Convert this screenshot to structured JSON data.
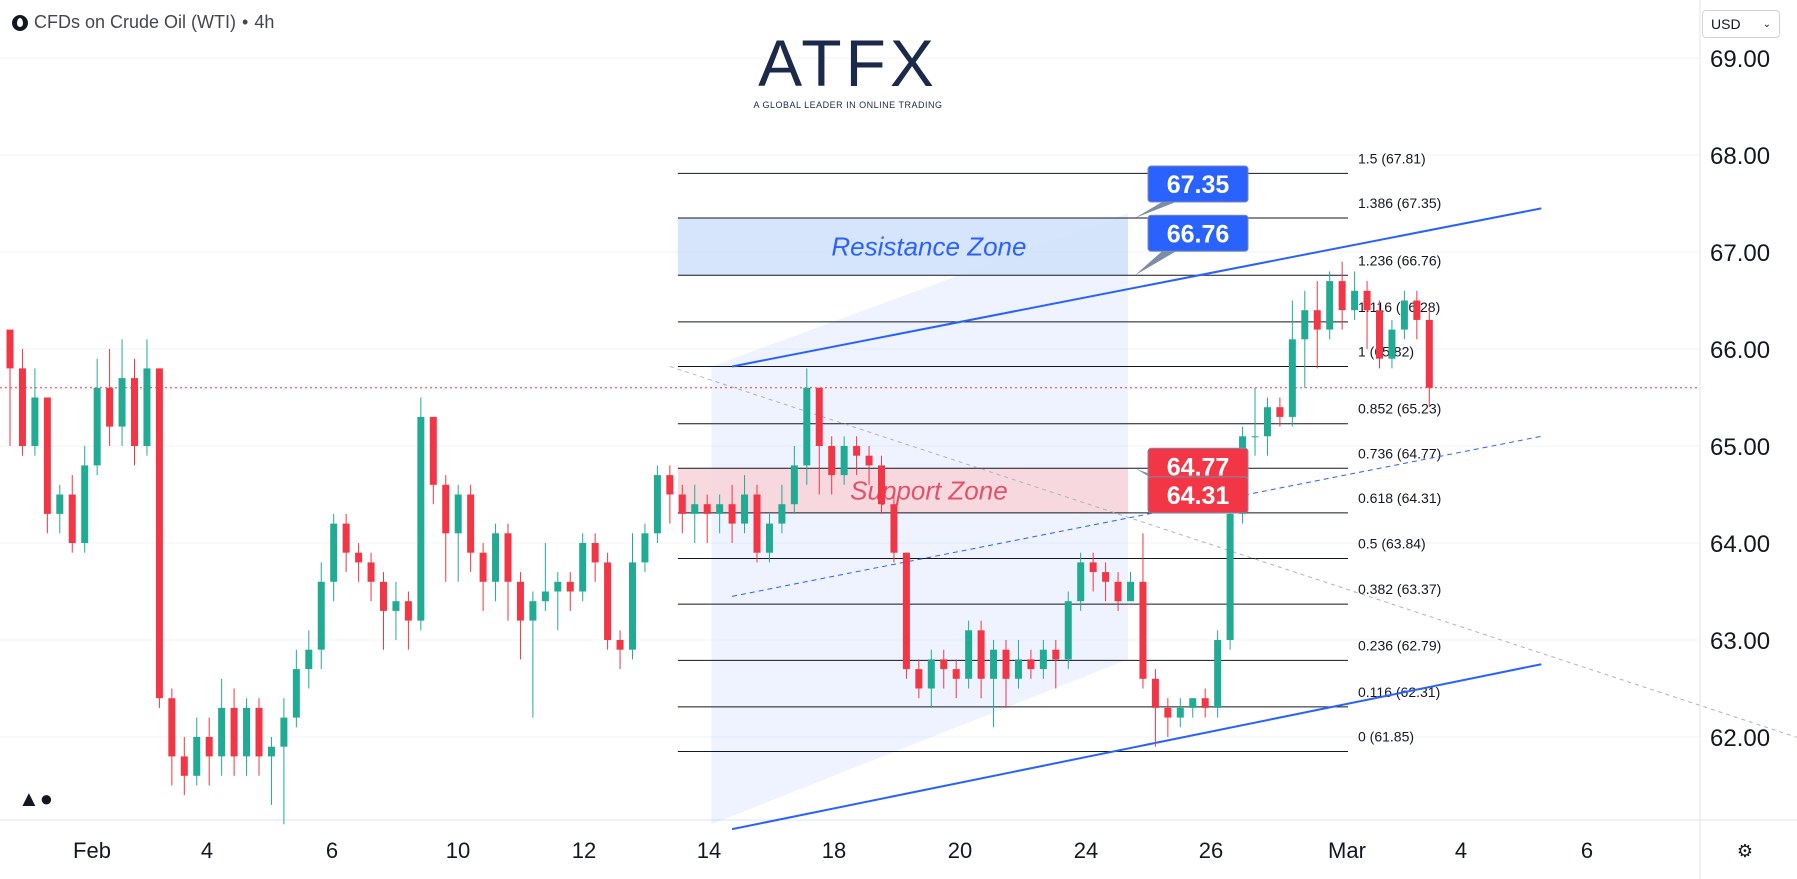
{
  "header": {
    "symbol": "CFDs on Crude Oil (WTI)",
    "separator": "•",
    "interval": "4h"
  },
  "currency_selector": {
    "value": "USD"
  },
  "logo": {
    "brand": "ATFX",
    "tagline": "A GLOBAL LEADER IN ONLINE TRADING"
  },
  "icons": {
    "tv_logo": "tradingview-logo-icon",
    "settings": "settings-icon",
    "chevron": "chevron-down-icon"
  },
  "colors": {
    "up": "#22ab94",
    "down": "#f23645",
    "resistance_fill": "#cfe0fa",
    "support_fill": "#f7d2d8",
    "channel": "#2962ff",
    "badge_blue": "#2962ff",
    "badge_red": "#f23645"
  },
  "chart_data": {
    "type": "candlestick",
    "title": "",
    "ylim": [
      61.0,
      69.2
    ],
    "y_ticks": [
      "62.00",
      "63.00",
      "64.00",
      "65.00",
      "66.00",
      "67.00",
      "68.00",
      "69.00"
    ],
    "x_ticks": [
      "Feb",
      "4",
      "6",
      "10",
      "12",
      "14",
      "18",
      "20",
      "24",
      "26",
      "Mar",
      "4",
      "6"
    ],
    "current_price": 65.6,
    "candles": [
      [
        66.2,
        65.8,
        66.1,
        65.0
      ],
      [
        65.8,
        65.0,
        66.0,
        64.9
      ],
      [
        65.0,
        65.5,
        65.8,
        64.9
      ],
      [
        65.5,
        64.3,
        65.5,
        64.1
      ],
      [
        64.3,
        64.5,
        64.6,
        64.1
      ],
      [
        64.5,
        64.0,
        64.7,
        63.9
      ],
      [
        64.0,
        64.8,
        65.0,
        63.9
      ],
      [
        64.8,
        65.6,
        65.9,
        64.7
      ],
      [
        65.6,
        65.2,
        66.0,
        65.0
      ],
      [
        65.2,
        65.7,
        66.1,
        65.0
      ],
      [
        65.7,
        65.0,
        65.9,
        64.8
      ],
      [
        65.0,
        65.8,
        66.1,
        64.9
      ],
      [
        65.8,
        62.4,
        65.8,
        62.3
      ],
      [
        62.4,
        61.8,
        62.5,
        61.5
      ],
      [
        61.8,
        61.6,
        62.0,
        61.4
      ],
      [
        61.6,
        62.0,
        62.2,
        61.5
      ],
      [
        62.0,
        61.8,
        62.2,
        61.5
      ],
      [
        61.8,
        62.3,
        62.6,
        61.6
      ],
      [
        62.3,
        61.8,
        62.5,
        61.6
      ],
      [
        61.8,
        62.3,
        62.4,
        61.6
      ],
      [
        62.3,
        61.8,
        62.4,
        61.6
      ],
      [
        61.8,
        61.9,
        62.0,
        61.3
      ],
      [
        61.9,
        62.2,
        62.4,
        61.1
      ],
      [
        62.2,
        62.7,
        62.9,
        62.1
      ],
      [
        62.7,
        62.9,
        63.1,
        62.5
      ],
      [
        62.9,
        63.6,
        63.8,
        62.7
      ],
      [
        63.6,
        64.2,
        64.3,
        63.4
      ],
      [
        64.2,
        63.9,
        64.3,
        63.7
      ],
      [
        63.9,
        63.8,
        64.0,
        63.6
      ],
      [
        63.8,
        63.6,
        63.9,
        63.4
      ],
      [
        63.6,
        63.3,
        63.7,
        62.9
      ],
      [
        63.3,
        63.4,
        63.6,
        63.0
      ],
      [
        63.4,
        63.2,
        63.5,
        62.9
      ],
      [
        63.2,
        65.3,
        65.5,
        63.1
      ],
      [
        65.3,
        64.6,
        65.3,
        64.4
      ],
      [
        64.6,
        64.1,
        64.7,
        63.6
      ],
      [
        64.1,
        64.5,
        64.6,
        63.6
      ],
      [
        64.5,
        63.9,
        64.6,
        63.7
      ],
      [
        63.9,
        63.6,
        64.0,
        63.3
      ],
      [
        63.6,
        64.1,
        64.2,
        63.4
      ],
      [
        64.1,
        63.6,
        64.2,
        63.2
      ],
      [
        63.6,
        63.2,
        63.7,
        62.8
      ],
      [
        63.2,
        63.4,
        63.5,
        62.2
      ],
      [
        63.4,
        63.5,
        64.0,
        63.3
      ],
      [
        63.5,
        63.6,
        63.7,
        63.1
      ],
      [
        63.6,
        63.5,
        63.7,
        63.3
      ],
      [
        63.5,
        64.0,
        64.1,
        63.4
      ],
      [
        64.0,
        63.8,
        64.1,
        63.6
      ],
      [
        63.8,
        63.0,
        63.9,
        62.9
      ],
      [
        63.0,
        62.9,
        63.1,
        62.7
      ],
      [
        62.9,
        63.8,
        64.1,
        62.8
      ],
      [
        63.8,
        64.1,
        64.2,
        63.7
      ],
      [
        64.1,
        64.7,
        64.8,
        64.0
      ],
      [
        64.7,
        64.5,
        64.8,
        64.2
      ],
      [
        64.5,
        64.3,
        64.6,
        64.1
      ],
      [
        64.3,
        64.4,
        64.6,
        64.0
      ],
      [
        64.4,
        64.3,
        64.5,
        64.0
      ],
      [
        64.3,
        64.4,
        64.5,
        64.1
      ],
      [
        64.4,
        64.2,
        64.6,
        64.0
      ],
      [
        64.2,
        64.5,
        64.7,
        64.1
      ],
      [
        64.5,
        63.9,
        64.6,
        63.8
      ],
      [
        63.9,
        64.2,
        64.3,
        63.8
      ],
      [
        64.2,
        64.4,
        64.6,
        64.1
      ],
      [
        64.4,
        64.8,
        65.0,
        64.3
      ],
      [
        64.8,
        65.6,
        65.8,
        64.6
      ],
      [
        65.6,
        65.0,
        65.6,
        64.5
      ],
      [
        65.0,
        64.7,
        65.1,
        64.5
      ],
      [
        64.7,
        65.0,
        65.1,
        64.6
      ],
      [
        65.0,
        64.9,
        65.1,
        64.7
      ],
      [
        64.9,
        64.8,
        65.0,
        64.6
      ],
      [
        64.8,
        64.4,
        64.9,
        64.3
      ],
      [
        64.4,
        63.9,
        64.5,
        63.8
      ],
      [
        63.9,
        62.7,
        63.9,
        62.6
      ],
      [
        62.7,
        62.5,
        62.8,
        62.4
      ],
      [
        62.5,
        62.8,
        62.9,
        62.3
      ],
      [
        62.8,
        62.7,
        62.9,
        62.5
      ],
      [
        62.7,
        62.6,
        62.8,
        62.4
      ],
      [
        62.6,
        63.1,
        63.2,
        62.5
      ],
      [
        63.1,
        62.6,
        63.2,
        62.4
      ],
      [
        62.6,
        62.9,
        63.0,
        62.1
      ],
      [
        62.9,
        62.6,
        63.0,
        62.3
      ],
      [
        62.6,
        62.8,
        63.0,
        62.5
      ],
      [
        62.8,
        62.7,
        62.9,
        62.6
      ],
      [
        62.7,
        62.9,
        63.0,
        62.6
      ],
      [
        62.9,
        62.8,
        63.0,
        62.5
      ],
      [
        62.8,
        63.4,
        63.5,
        62.7
      ],
      [
        63.4,
        63.8,
        63.9,
        63.3
      ],
      [
        63.8,
        63.7,
        63.9,
        63.5
      ],
      [
        63.7,
        63.6,
        63.8,
        63.4
      ],
      [
        63.6,
        63.4,
        63.7,
        63.3
      ],
      [
        63.4,
        63.6,
        63.7,
        63.4
      ],
      [
        63.6,
        62.6,
        64.1,
        62.5
      ],
      [
        62.6,
        62.3,
        62.7,
        61.9
      ],
      [
        62.3,
        62.2,
        62.4,
        62.0
      ],
      [
        62.2,
        62.3,
        62.4,
        62.1
      ],
      [
        62.3,
        62.4,
        62.4,
        62.2
      ],
      [
        62.4,
        62.3,
        62.5,
        62.2
      ],
      [
        62.3,
        63.0,
        63.1,
        62.2
      ],
      [
        63.0,
        64.3,
        64.4,
        62.9
      ],
      [
        64.3,
        65.1,
        65.2,
        64.2
      ],
      [
        65.1,
        65.1,
        65.6,
        64.9
      ],
      [
        65.1,
        65.4,
        65.5,
        64.9
      ],
      [
        65.4,
        65.3,
        65.5,
        65.2
      ],
      [
        65.3,
        66.1,
        66.5,
        65.2
      ],
      [
        66.1,
        66.4,
        66.6,
        65.6
      ],
      [
        66.4,
        66.2,
        66.7,
        65.8
      ],
      [
        66.2,
        66.7,
        66.8,
        66.1
      ],
      [
        66.7,
        66.4,
        66.9,
        66.2
      ],
      [
        66.4,
        66.6,
        66.8,
        66.3
      ],
      [
        66.6,
        66.4,
        66.7,
        66.0
      ],
      [
        66.4,
        65.9,
        66.5,
        65.8
      ],
      [
        65.9,
        66.2,
        66.3,
        65.8
      ],
      [
        66.2,
        66.5,
        66.6,
        66.1
      ],
      [
        66.5,
        66.3,
        66.6,
        66.1
      ],
      [
        66.3,
        65.6,
        66.4,
        65.4
      ]
    ],
    "fib_levels": [
      {
        "ratio": 1.5,
        "price": 67.81,
        "label": "1.5 (67.81)"
      },
      {
        "ratio": 1.386,
        "price": 67.35,
        "label": "1.386 (67.35)"
      },
      {
        "ratio": 1.236,
        "price": 66.76,
        "label": "1.236 (66.76)"
      },
      {
        "ratio": 1.116,
        "price": 66.28,
        "label": "1.116 (66.28)"
      },
      {
        "ratio": 1,
        "price": 65.82,
        "label": "1 (65.82)"
      },
      {
        "ratio": 0.852,
        "price": 65.23,
        "label": "0.852 (65.23)"
      },
      {
        "ratio": 0.736,
        "price": 64.77,
        "label": "0.736 (64.77)"
      },
      {
        "ratio": 0.618,
        "price": 64.31,
        "label": "0.618 (64.31)"
      },
      {
        "ratio": 0.5,
        "price": 63.84,
        "label": "0.5 (63.84)"
      },
      {
        "ratio": 0.382,
        "price": 63.37,
        "label": "0.382 (63.37)"
      },
      {
        "ratio": 0.236,
        "price": 62.79,
        "label": "0.236 (62.79)"
      },
      {
        "ratio": 0.116,
        "price": 62.31,
        "label": "0.116 (62.31)"
      },
      {
        "ratio": 0,
        "price": 61.85,
        "label": "0 (61.85)"
      }
    ],
    "zones": [
      {
        "name": "Resistance Zone",
        "low": 66.76,
        "high": 67.35
      },
      {
        "name": "Support Zone",
        "low": 64.31,
        "high": 64.77
      }
    ],
    "price_badges": [
      {
        "value": "67.35",
        "price": 67.35,
        "color": "blue"
      },
      {
        "value": "66.76",
        "price": 66.76,
        "color": "blue"
      },
      {
        "value": "64.77",
        "price": 64.77,
        "color": "red"
      },
      {
        "value": "64.31",
        "price": 64.31,
        "color": "red"
      }
    ],
    "channel": {
      "upper": [
        [
          58,
          65.82
        ],
        [
          123,
          67.45
        ]
      ],
      "lower": [
        [
          58,
          61.05
        ],
        [
          123,
          62.75
        ]
      ],
      "mid": [
        [
          58,
          63.45
        ],
        [
          123,
          65.1
        ]
      ],
      "diagonal": [
        [
          53,
          65.82
        ],
        [
          147,
          61.85
        ]
      ]
    },
    "x_tick_index": [
      8,
      21,
      34,
      47,
      60,
      73,
      86,
      99,
      112,
      125,
      138,
      151,
      164
    ]
  }
}
